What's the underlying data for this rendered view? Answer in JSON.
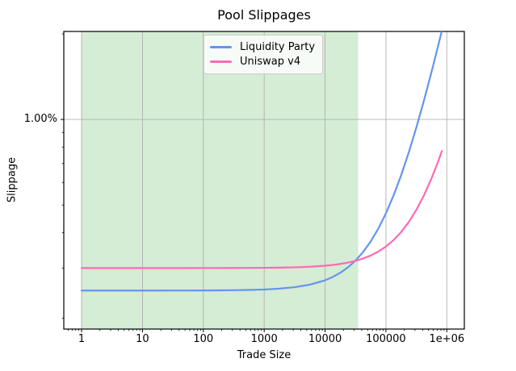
{
  "colors": {
    "grid": "#b0b0b0",
    "spine": "#000000",
    "text": "#000000",
    "legend_border": "#cccccc",
    "band_green": "#2ca02c"
  },
  "chart_data": {
    "type": "line",
    "title": "Pool Slippages",
    "xlabel": "Trade Size",
    "ylabel": "Slippage",
    "xscale": "log",
    "yscale": "log",
    "grid": true,
    "xlim": [
      0.51,
      1940000
    ],
    "ylim_percent": [
      0.183,
      2.04
    ],
    "x_ticks": [
      {
        "v": 1,
        "label": "1"
      },
      {
        "v": 10,
        "label": "10"
      },
      {
        "v": 100,
        "label": "100"
      },
      {
        "v": 1000,
        "label": "1000"
      },
      {
        "v": 10000,
        "label": "10000"
      },
      {
        "v": 100000,
        "label": "100000"
      },
      {
        "v": 1000000,
        "label": "1e+06"
      }
    ],
    "y_ticks": [
      {
        "v": 1.0,
        "label": "1.00%"
      }
    ],
    "highlight_band": {
      "x_from": 1,
      "x_to": 35000,
      "color": "#2ca02c",
      "opacity": 0.2
    },
    "legend": {
      "position": "upper center"
    },
    "x": [
      1,
      2,
      3.16,
      5.62,
      10,
      17.8,
      31.6,
      56.2,
      100,
      178,
      316,
      562,
      1000,
      1778,
      3162,
      5623,
      10000,
      13335,
      17783,
      23714,
      31623,
      42170,
      56234,
      74989,
      100000,
      133352,
      177828,
      237137,
      316228,
      421697,
      562341,
      649382,
      749894,
      830000
    ],
    "series": [
      {
        "name": "Liquidity Party",
        "color": "#6495ed",
        "flat_fee_percent": 0.25,
        "values_percent": [
          0.25,
          0.25,
          0.25,
          0.25,
          0.25,
          0.25,
          0.2501,
          0.2501,
          0.2502,
          0.2504,
          0.2507,
          0.2512,
          0.2522,
          0.2539,
          0.2569,
          0.2622,
          0.2717,
          0.279,
          0.2887,
          0.3016,
          0.3187,
          0.3417,
          0.3722,
          0.413,
          0.4674,
          0.5399,
          0.6366,
          0.7655,
          0.9374,
          1.1667,
          1.4725,
          1.6617,
          1.8802,
          2.0543
        ]
      },
      {
        "name": "Uniswap v4",
        "color": "#ff69b4",
        "flat_fee_percent": 0.3,
        "values_percent": [
          0.3,
          0.3,
          0.3,
          0.3,
          0.3,
          0.3,
          0.3,
          0.3,
          0.3001,
          0.3001,
          0.3002,
          0.3003,
          0.3006,
          0.301,
          0.3018,
          0.3032,
          0.3057,
          0.3076,
          0.3102,
          0.3136,
          0.3181,
          0.3241,
          0.3321,
          0.3429,
          0.3571,
          0.3762,
          0.4016,
          0.4355,
          0.4807,
          0.541,
          0.6213,
          0.6711,
          0.7285,
          0.7743
        ]
      }
    ]
  }
}
